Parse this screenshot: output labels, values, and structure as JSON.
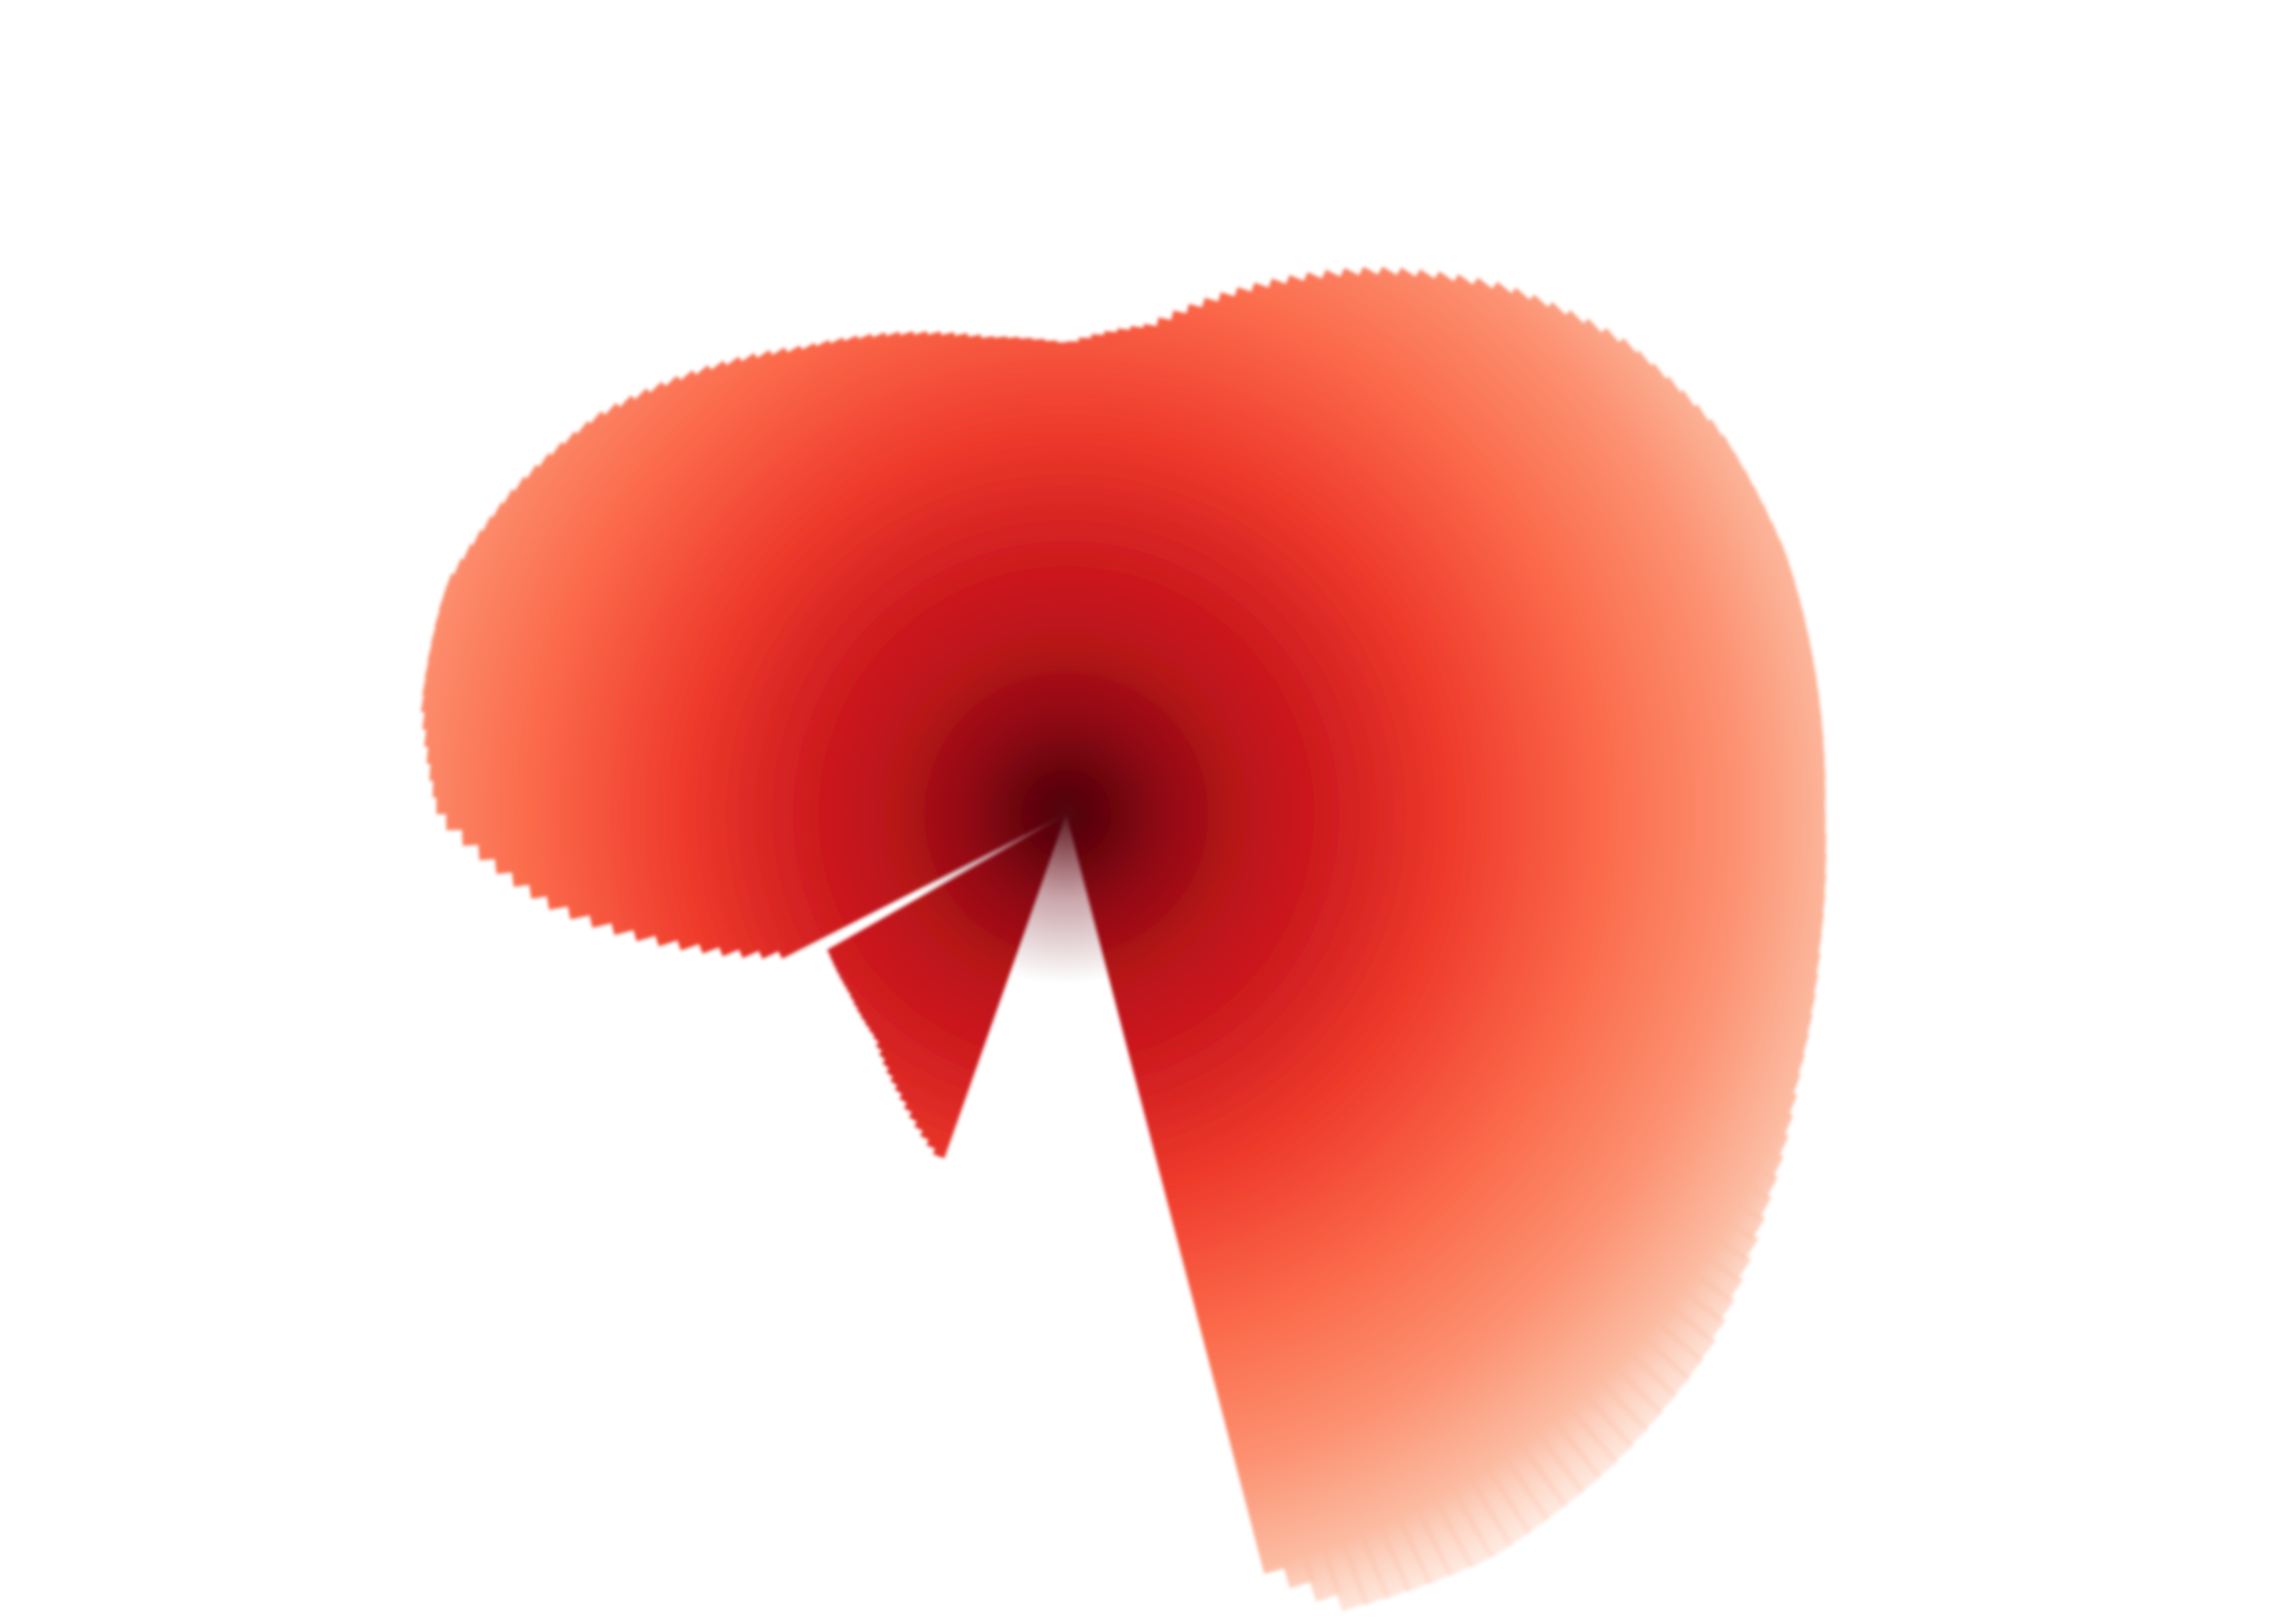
{
  "chart_data": {
    "type": "heatmap",
    "title": "",
    "xlabel": "",
    "ylabel": "",
    "grid": false,
    "legend": "none",
    "colorscale": {
      "name": "Reds",
      "low": "#fff5f0",
      "mid": "#fb6a4a",
      "high": "#67000d"
    },
    "value_range": [
      0,
      1
    ],
    "peak": {
      "value": 1.0
    }
  }
}
